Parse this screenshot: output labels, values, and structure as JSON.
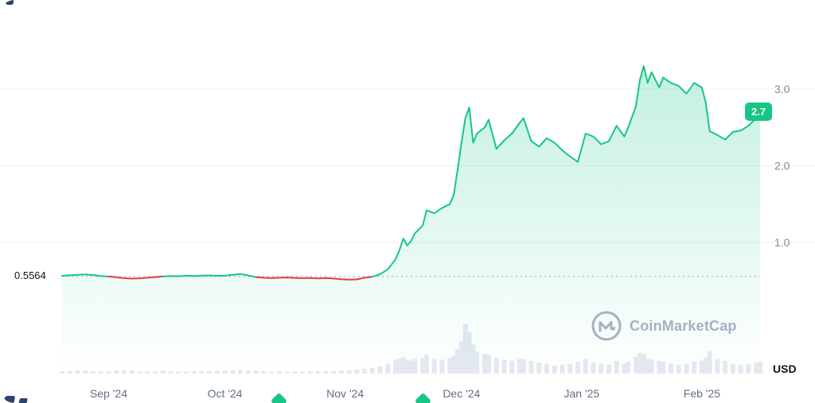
{
  "watermark": {
    "text": "CoinMarketCap"
  },
  "chart_data": {
    "type": "area",
    "title": "",
    "unit": "USD",
    "baseline": {
      "value": 0.5564,
      "label": "0.5564"
    },
    "current": {
      "value": 2.7,
      "label": "2.7"
    },
    "ylim": [
      0.4,
      3.6
    ],
    "grid": true,
    "legend": "none",
    "y_ticks": [
      {
        "value": 3.0,
        "label": "3.0"
      },
      {
        "value": 2.0,
        "label": "2.0"
      },
      {
        "value": 1.0,
        "label": "1.0"
      }
    ],
    "x_ticks": [
      {
        "date": "2024-09-01",
        "label": "Sep '24"
      },
      {
        "date": "2024-10-01",
        "label": "Oct '24"
      },
      {
        "date": "2024-11-01",
        "label": "Nov '24"
      },
      {
        "date": "2024-12-01",
        "label": "Dec '24"
      },
      {
        "date": "2025-01-01",
        "label": "Jan '25"
      },
      {
        "date": "2025-02-01",
        "label": "Feb '25"
      }
    ],
    "markers": [
      {
        "date": "2024-10-15"
      },
      {
        "date": "2024-11-21"
      }
    ],
    "colors": {
      "up": "#16c784",
      "down": "#ea3943",
      "volume": "#e4e8f1",
      "grid": "#eef0f4",
      "tick_text": "#808a9d",
      "month_text": "#616e85",
      "baseline_dotted": "#9aa3af"
    },
    "points": [
      [
        "2024-08-20",
        0.565,
        0.05
      ],
      [
        "2024-08-22",
        0.572,
        0.05
      ],
      [
        "2024-08-24",
        0.578,
        0.06
      ],
      [
        "2024-08-26",
        0.583,
        0.06
      ],
      [
        "2024-08-28",
        0.575,
        0.05
      ],
      [
        "2024-08-30",
        0.562,
        0.05
      ],
      [
        "2024-09-01",
        0.556,
        0.05
      ],
      [
        "2024-09-03",
        0.545,
        0.06
      ],
      [
        "2024-09-05",
        0.535,
        0.07
      ],
      [
        "2024-09-07",
        0.528,
        0.06
      ],
      [
        "2024-09-09",
        0.533,
        0.05
      ],
      [
        "2024-09-11",
        0.54,
        0.05
      ],
      [
        "2024-09-13",
        0.548,
        0.05
      ],
      [
        "2024-09-15",
        0.556,
        0.06
      ],
      [
        "2024-09-17",
        0.562,
        0.05
      ],
      [
        "2024-09-19",
        0.56,
        0.04
      ],
      [
        "2024-09-21",
        0.566,
        0.04
      ],
      [
        "2024-09-23",
        0.562,
        0.05
      ],
      [
        "2024-09-25",
        0.568,
        0.05
      ],
      [
        "2024-09-27",
        0.57,
        0.05
      ],
      [
        "2024-09-29",
        0.565,
        0.05
      ],
      [
        "2024-10-01",
        0.568,
        0.06
      ],
      [
        "2024-10-03",
        0.578,
        0.07
      ],
      [
        "2024-10-05",
        0.588,
        0.08
      ],
      [
        "2024-10-07",
        0.57,
        0.06
      ],
      [
        "2024-10-09",
        0.548,
        0.06
      ],
      [
        "2024-10-11",
        0.54,
        0.05
      ],
      [
        "2024-10-13",
        0.536,
        0.04
      ],
      [
        "2024-10-15",
        0.54,
        0.05
      ],
      [
        "2024-10-17",
        0.543,
        0.04
      ],
      [
        "2024-10-19",
        0.538,
        0.04
      ],
      [
        "2024-10-21",
        0.535,
        0.04
      ],
      [
        "2024-10-23",
        0.538,
        0.05
      ],
      [
        "2024-10-25",
        0.532,
        0.05
      ],
      [
        "2024-10-27",
        0.536,
        0.05
      ],
      [
        "2024-10-29",
        0.53,
        0.05
      ],
      [
        "2024-10-31",
        0.52,
        0.06
      ],
      [
        "2024-11-02",
        0.515,
        0.07
      ],
      [
        "2024-11-04",
        0.518,
        0.08
      ],
      [
        "2024-11-06",
        0.54,
        0.1
      ],
      [
        "2024-11-08",
        0.552,
        0.12
      ],
      [
        "2024-11-10",
        0.585,
        0.15
      ],
      [
        "2024-11-12",
        0.65,
        0.2
      ],
      [
        "2024-11-14",
        0.78,
        0.27
      ],
      [
        "2024-11-15",
        0.9,
        0.3
      ],
      [
        "2024-11-16",
        1.05,
        0.33
      ],
      [
        "2024-11-17",
        0.96,
        0.28
      ],
      [
        "2024-11-18",
        1.02,
        0.26
      ],
      [
        "2024-11-19",
        1.12,
        0.3
      ],
      [
        "2024-11-21",
        1.22,
        0.32
      ],
      [
        "2024-11-22",
        1.42,
        0.38
      ],
      [
        "2024-11-24",
        1.38,
        0.3
      ],
      [
        "2024-11-26",
        1.45,
        0.28
      ],
      [
        "2024-11-28",
        1.5,
        0.32
      ],
      [
        "2024-11-29",
        1.62,
        0.36
      ],
      [
        "2024-11-30",
        1.95,
        0.5
      ],
      [
        "2024-12-01",
        2.3,
        0.65
      ],
      [
        "2024-12-02",
        2.62,
        1.0
      ],
      [
        "2024-12-03",
        2.76,
        0.85
      ],
      [
        "2024-12-04",
        2.3,
        0.6
      ],
      [
        "2024-12-05",
        2.42,
        0.45
      ],
      [
        "2024-12-07",
        2.5,
        0.4
      ],
      [
        "2024-12-08",
        2.6,
        0.38
      ],
      [
        "2024-12-10",
        2.22,
        0.32
      ],
      [
        "2024-12-12",
        2.33,
        0.28
      ],
      [
        "2024-12-14",
        2.42,
        0.26
      ],
      [
        "2024-12-16",
        2.56,
        0.3
      ],
      [
        "2024-12-17",
        2.62,
        0.3
      ],
      [
        "2024-12-19",
        2.32,
        0.26
      ],
      [
        "2024-12-21",
        2.25,
        0.22
      ],
      [
        "2024-12-23",
        2.36,
        0.2
      ],
      [
        "2024-12-25",
        2.3,
        0.16
      ],
      [
        "2024-12-27",
        2.2,
        0.18
      ],
      [
        "2024-12-29",
        2.12,
        0.2
      ],
      [
        "2024-12-31",
        2.05,
        0.24
      ],
      [
        "2025-01-02",
        2.42,
        0.3
      ],
      [
        "2025-01-04",
        2.38,
        0.22
      ],
      [
        "2025-01-06",
        2.28,
        0.2
      ],
      [
        "2025-01-08",
        2.32,
        0.18
      ],
      [
        "2025-01-10",
        2.52,
        0.26
      ],
      [
        "2025-01-12",
        2.38,
        0.2
      ],
      [
        "2025-01-13",
        2.5,
        0.24
      ],
      [
        "2025-01-15",
        2.78,
        0.34
      ],
      [
        "2025-01-16",
        3.12,
        0.42
      ],
      [
        "2025-01-17",
        3.3,
        0.4
      ],
      [
        "2025-01-18",
        3.08,
        0.3
      ],
      [
        "2025-01-19",
        3.22,
        0.28
      ],
      [
        "2025-01-21",
        3.02,
        0.26
      ],
      [
        "2025-01-22",
        3.15,
        0.24
      ],
      [
        "2025-01-24",
        3.08,
        0.2
      ],
      [
        "2025-01-26",
        3.04,
        0.18
      ],
      [
        "2025-01-28",
        2.94,
        0.2
      ],
      [
        "2025-01-30",
        3.08,
        0.24
      ],
      [
        "2025-02-01",
        3.02,
        0.26
      ],
      [
        "2025-02-02",
        2.82,
        0.32
      ],
      [
        "2025-02-03",
        2.45,
        0.45
      ],
      [
        "2025-02-05",
        2.4,
        0.3
      ],
      [
        "2025-02-07",
        2.34,
        0.26
      ],
      [
        "2025-02-09",
        2.44,
        0.2
      ],
      [
        "2025-02-11",
        2.46,
        0.18
      ],
      [
        "2025-02-13",
        2.52,
        0.2
      ],
      [
        "2025-02-15",
        2.62,
        0.22
      ],
      [
        "2025-02-16",
        2.7,
        0.24
      ]
    ]
  }
}
